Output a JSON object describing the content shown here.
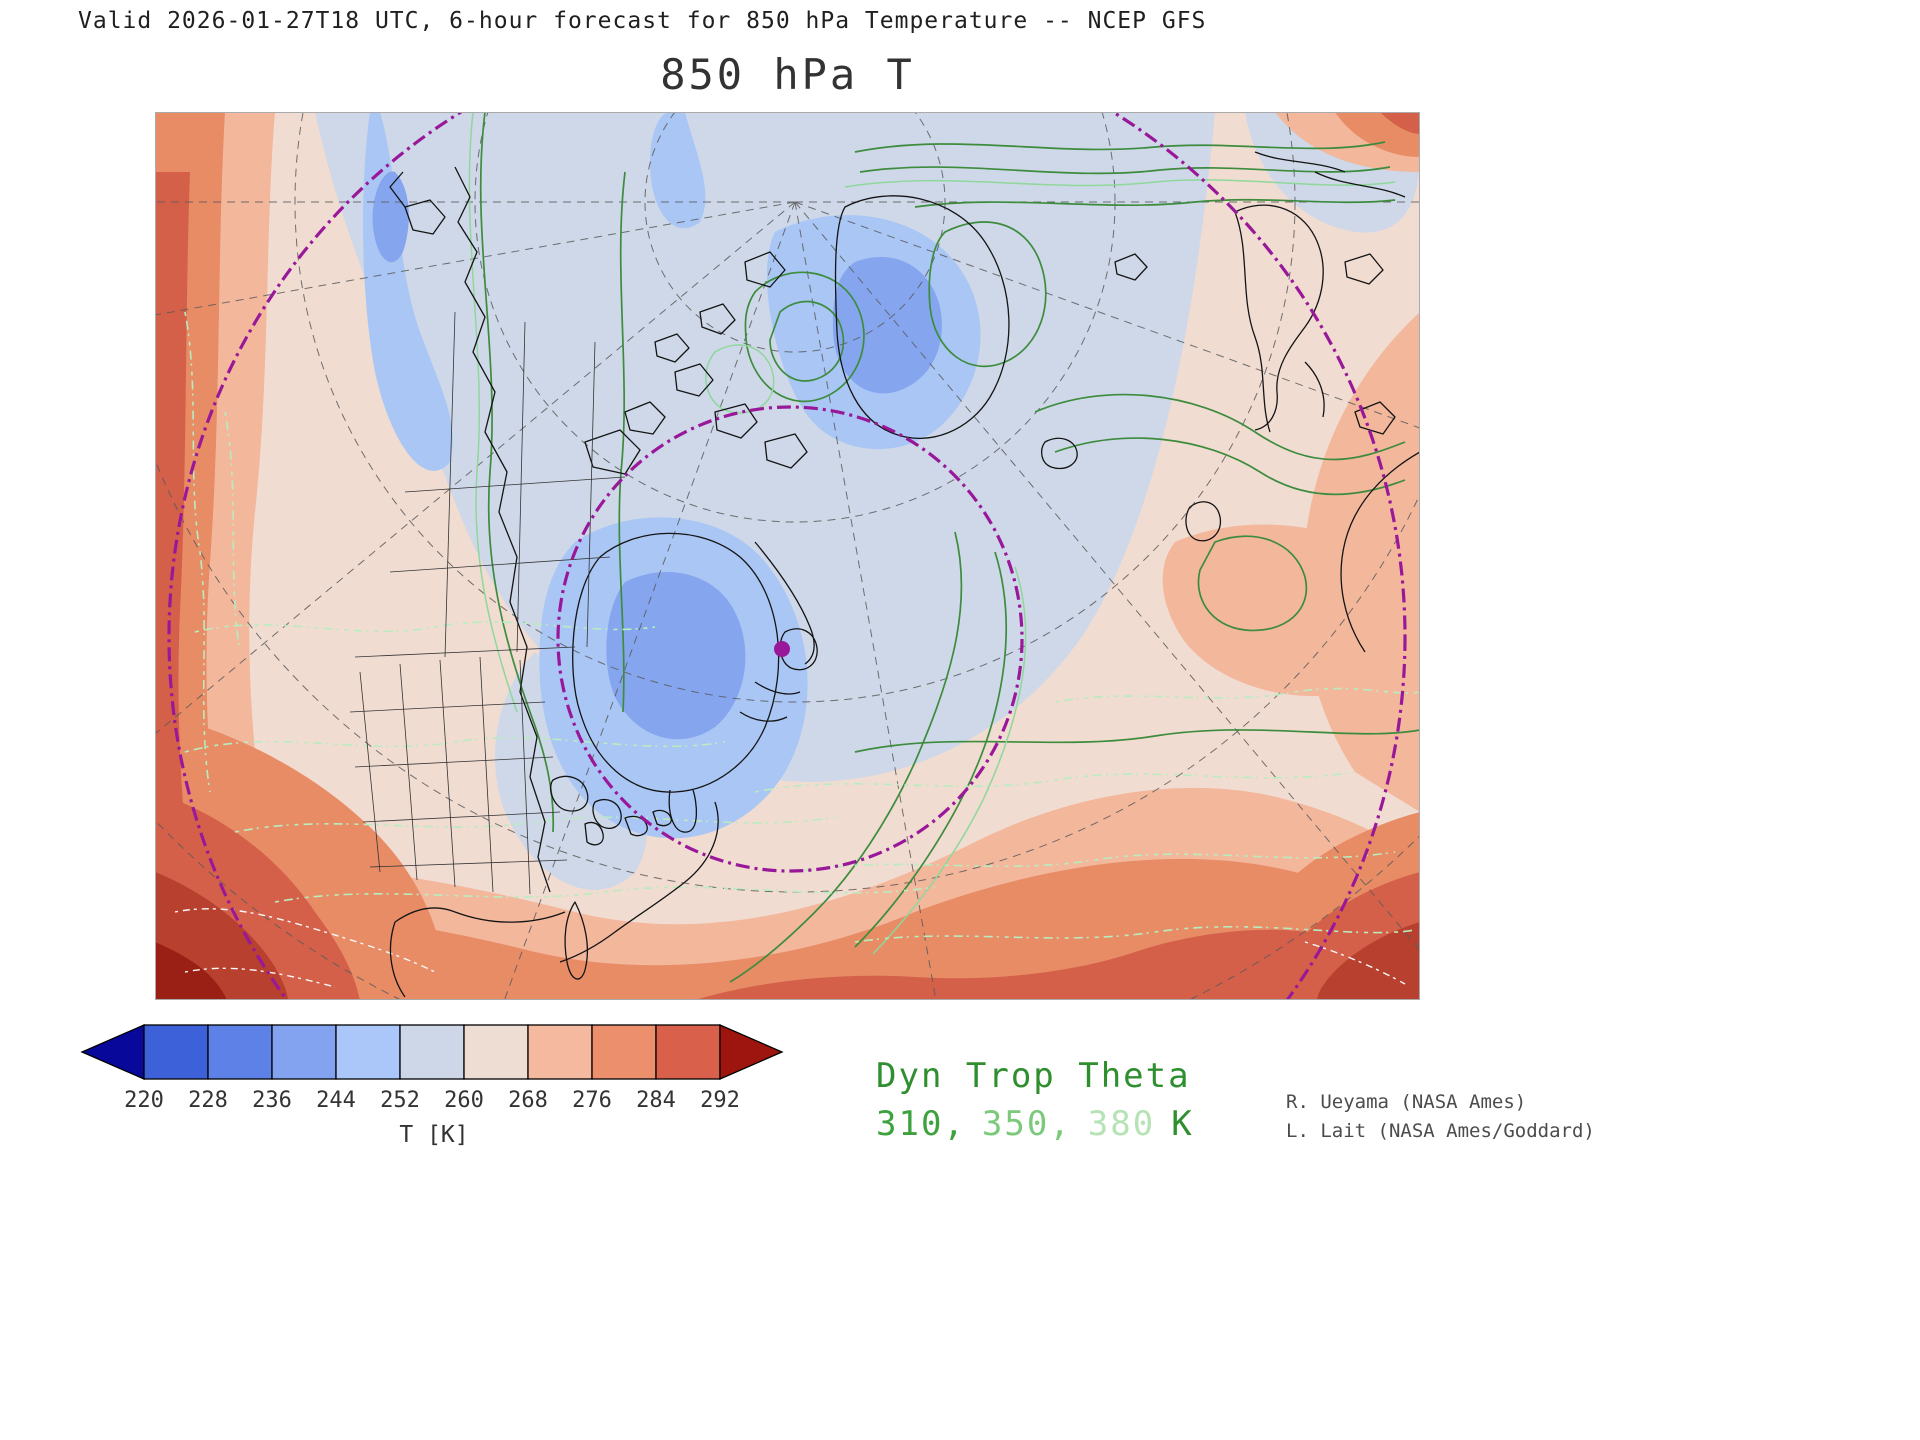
{
  "header": {
    "valid_line": "Valid 2026-01-27T18 UTC, 6-hour forecast for 850 hPa Temperature -- NCEP GFS",
    "title": "850 hPa T"
  },
  "chart_data": {
    "type": "heatmap",
    "title": "850 hPa T",
    "subtitle": "Valid 2026-01-27T18 UTC, 6-hour forecast for 850 hPa Temperature -- NCEP GFS",
    "model": "NCEP GFS",
    "valid_time": "2026-01-27T18 UTC",
    "forecast_hours": 6,
    "field": "850 hPa Temperature",
    "projection": "polar stereographic view of North America / Arctic / North Atlantic",
    "colorbar": {
      "label": "T [K]",
      "units": "K",
      "ticks": [
        "220",
        "228",
        "236",
        "244",
        "252",
        "260",
        "268",
        "276",
        "284",
        "292"
      ],
      "levels": [
        220,
        228,
        236,
        244,
        252,
        260,
        268,
        276,
        284,
        292
      ],
      "under_arrow_color": "#08089a",
      "over_arrow_color": "#9e1510",
      "cell_colors": [
        "#3d61d8",
        "#5d81e6",
        "#83a3f1",
        "#abc6f8",
        "#cdd7e8",
        "#eeddd3",
        "#f4b99f",
        "#eb8f6d",
        "#d9614b"
      ]
    },
    "overlay_contours": {
      "name": "Dyn Trop Theta",
      "levels_k": [
        310,
        350,
        380
      ],
      "level_colors": [
        "#3da23d",
        "#7cc97c",
        "#b5e3b5"
      ],
      "units": "K"
    },
    "annotations": {
      "purple_marker_color": "#991899"
    }
  },
  "footer": {
    "overlay_title": "Dyn Trop Theta",
    "levels": [
      {
        "text": "310,",
        "color": "#3da23d"
      },
      {
        "text": "350,",
        "color": "#7cc97c"
      },
      {
        "text": "380",
        "color": "#b5e3b5"
      },
      {
        "text": "K",
        "color": "#2f8f2f"
      }
    ],
    "credits": [
      "R. Ueyama (NASA Ames)",
      "L. Lait (NASA Ames/Goddard)"
    ]
  },
  "colors": {
    "theta_title_green": "#2f8f2f",
    "purple_marker": "#991899",
    "graticule_gray": "#5a5a5a",
    "coastline_black": "#141414",
    "credits_gray": "#4c4c4c"
  }
}
